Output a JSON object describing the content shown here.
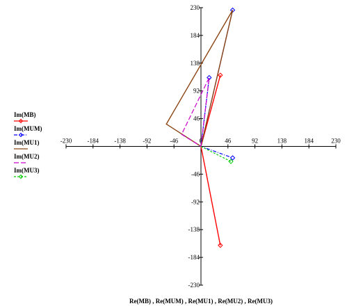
{
  "chart_data": {
    "type": "line",
    "xlabel": "Re(MB) , Re(MUM) , Re(MU1) , Re(MU2) , Re(MU3)",
    "ylabel": "",
    "xlim": [
      -230,
      230
    ],
    "ylim": [
      -230,
      230
    ],
    "xticks": [
      -230,
      -184,
      -138,
      -92,
      -46,
      0,
      46,
      92,
      138,
      184,
      230
    ],
    "yticks": [
      -230,
      -184,
      -138,
      -92,
      -46,
      46,
      92,
      138,
      184,
      230
    ],
    "grid": false,
    "legend_position": "left",
    "series": [
      {
        "name": "Im(MB)",
        "color": "#ff0000",
        "style": "solid",
        "marker": "diamond",
        "points": [
          [
            0,
            0
          ],
          [
            33,
            118
          ],
          [
            0,
            0
          ],
          [
            33,
            -164
          ]
        ]
      },
      {
        "name": "Im(MUM)",
        "color": "#0000ff",
        "style": "dash-dot",
        "marker": "diamond",
        "points": [
          [
            0,
            0
          ],
          [
            14,
            114
          ],
          [
            0,
            0
          ],
          [
            54,
            226
          ],
          [
            0,
            0
          ],
          [
            54,
            -19
          ]
        ]
      },
      {
        "name": "Im(MU1)",
        "color": "#8b4513",
        "style": "solid",
        "marker": "none",
        "points": [
          [
            0,
            0
          ],
          [
            54,
            226
          ],
          [
            -59,
            37
          ],
          [
            0,
            0
          ]
        ]
      },
      {
        "name": "Im(MU2)",
        "color": "#cc00cc",
        "style": "long-dash",
        "marker": "none",
        "points": [
          [
            0,
            0
          ],
          [
            14,
            114
          ],
          [
            -33,
            20
          ],
          [
            0,
            0
          ]
        ]
      },
      {
        "name": "Im(MU3)",
        "color": "#00cc00",
        "style": "dash",
        "marker": "diamond",
        "points": [
          [
            0,
            0
          ],
          [
            51,
            -25
          ]
        ]
      }
    ]
  }
}
